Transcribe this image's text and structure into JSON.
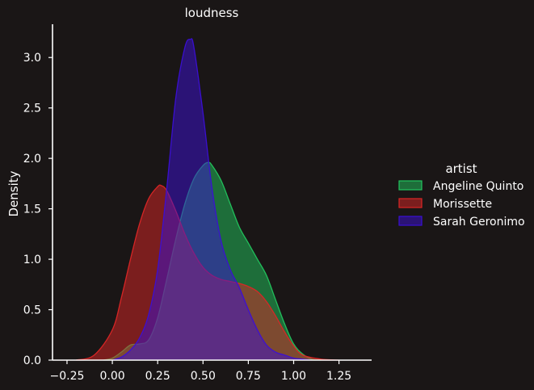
{
  "chart_data": {
    "type": "area",
    "title": "loudness",
    "xlabel": "",
    "ylabel": "Density",
    "xlim": [
      -0.33,
      1.43
    ],
    "ylim": [
      0,
      3.33
    ],
    "xticks": [
      "−0.25",
      "0.00",
      "0.25",
      "0.50",
      "0.75",
      "1.00",
      "1.25"
    ],
    "xtick_values": [
      -0.25,
      0.0,
      0.25,
      0.5,
      0.75,
      1.0,
      1.25
    ],
    "yticks": [
      "0.0",
      "0.5",
      "1.0",
      "1.5",
      "2.0",
      "2.5",
      "3.0"
    ],
    "ytick_values": [
      0.0,
      0.5,
      1.0,
      1.5,
      2.0,
      2.5,
      3.0
    ],
    "grid": false,
    "legend": {
      "title": "artist",
      "placement": "right"
    },
    "series": [
      {
        "name": "Angeline Quinto",
        "color": "#22c55e",
        "x": [
          -0.05,
          0.0,
          0.05,
          0.1,
          0.15,
          0.2,
          0.25,
          0.3,
          0.35,
          0.4,
          0.45,
          0.5,
          0.53,
          0.55,
          0.6,
          0.65,
          0.7,
          0.75,
          0.8,
          0.85,
          0.9,
          0.95,
          1.0,
          1.05,
          1.1,
          1.15
        ],
        "y": [
          0.0,
          0.02,
          0.08,
          0.15,
          0.16,
          0.2,
          0.42,
          0.8,
          1.2,
          1.55,
          1.8,
          1.93,
          1.96,
          1.93,
          1.78,
          1.55,
          1.32,
          1.16,
          1.0,
          0.84,
          0.6,
          0.36,
          0.16,
          0.06,
          0.01,
          0.0
        ]
      },
      {
        "name": "Morissette",
        "color": "#dc2626",
        "x": [
          -0.2,
          -0.1,
          0.0,
          0.05,
          0.1,
          0.15,
          0.2,
          0.25,
          0.27,
          0.3,
          0.35,
          0.4,
          0.45,
          0.5,
          0.55,
          0.6,
          0.65,
          0.7,
          0.75,
          0.8,
          0.85,
          0.9,
          0.95,
          1.0,
          1.05,
          1.15,
          1.25
        ],
        "y": [
          0.0,
          0.05,
          0.3,
          0.62,
          1.0,
          1.35,
          1.6,
          1.72,
          1.73,
          1.68,
          1.48,
          1.25,
          1.06,
          0.92,
          0.84,
          0.8,
          0.78,
          0.76,
          0.73,
          0.68,
          0.58,
          0.44,
          0.28,
          0.14,
          0.05,
          0.01,
          0.0
        ]
      },
      {
        "name": "Sarah Geronimo",
        "color": "#3b0fd6",
        "x": [
          0.0,
          0.05,
          0.1,
          0.15,
          0.2,
          0.25,
          0.3,
          0.35,
          0.4,
          0.43,
          0.45,
          0.5,
          0.55,
          0.6,
          0.65,
          0.7,
          0.75,
          0.8,
          0.85,
          0.9,
          0.95,
          1.0,
          1.05,
          1.1
        ],
        "y": [
          0.0,
          0.03,
          0.1,
          0.22,
          0.45,
          0.9,
          1.7,
          2.6,
          3.1,
          3.18,
          3.1,
          2.45,
          1.7,
          1.18,
          0.9,
          0.72,
          0.5,
          0.3,
          0.15,
          0.08,
          0.05,
          0.02,
          0.01,
          0.0
        ]
      }
    ]
  }
}
